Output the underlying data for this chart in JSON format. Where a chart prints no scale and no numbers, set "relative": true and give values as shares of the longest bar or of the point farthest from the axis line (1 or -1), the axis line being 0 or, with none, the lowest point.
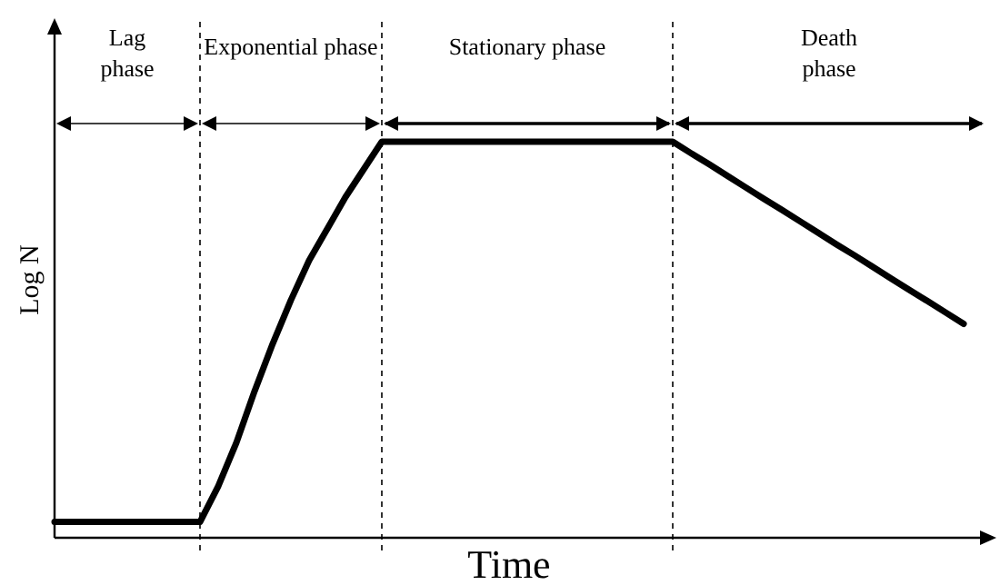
{
  "chart_data": {
    "type": "line",
    "relative": true,
    "xlabel": "Time",
    "ylabel": "Log N",
    "marker": "none",
    "grid": "x",
    "line_style": "solid",
    "categories": [
      null,
      null,
      null,
      null,
      null,
      null,
      null,
      null,
      null,
      null,
      null,
      null,
      null,
      null,
      null,
      null,
      null,
      null,
      null,
      null,
      null,
      null,
      null,
      null,
      null,
      null,
      null,
      null,
      null,
      null,
      null,
      null,
      null,
      null,
      null,
      null,
      null,
      null,
      null,
      null,
      null,
      null,
      null,
      null,
      null,
      null,
      null,
      null,
      null,
      null,
      null
    ],
    "series": [
      {
        "color": "#000000",
        "values": [
          0.04,
          0.04,
          0.04,
          0.04,
          0.04,
          0.04,
          0.04,
          0.04,
          0.04,
          0.13,
          0.24,
          0.37,
          0.49,
          0.6,
          0.7,
          0.78,
          0.86,
          0.93,
          1,
          1,
          1,
          1,
          1,
          1,
          1,
          1,
          1,
          1,
          1,
          1,
          1,
          1,
          1,
          1,
          1,
          0.971,
          0.943,
          0.914,
          0.885,
          0.856,
          0.828,
          0.799,
          0.77,
          0.741,
          0.713,
          0.684,
          0.655,
          0.626,
          0.598,
          0.569,
          0.54
        ]
      }
    ],
    "annotations": [
      "Lag\nphase",
      "Exponential phase",
      "Stationary phase",
      "Death\nphase"
    ]
  }
}
